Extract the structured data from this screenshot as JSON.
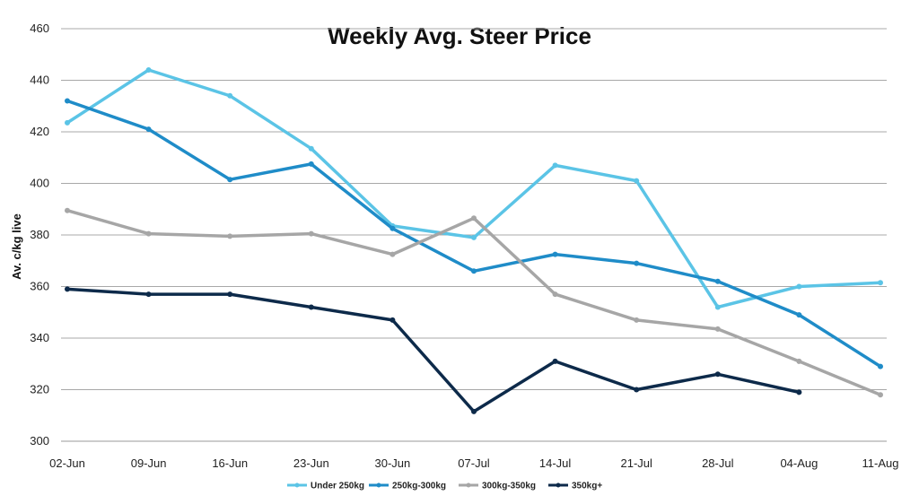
{
  "chart_data": {
    "type": "line",
    "title": "Weekly Avg. Steer Price",
    "xlabel": "",
    "ylabel": "Av. c/kg live",
    "ylim": [
      300,
      460
    ],
    "yticks": [
      300,
      320,
      340,
      360,
      380,
      400,
      420,
      440,
      460
    ],
    "grid": true,
    "legend_position": "bottom",
    "categories": [
      "02-Jun",
      "09-Jun",
      "16-Jun",
      "23-Jun",
      "30-Jun",
      "07-Jul",
      "14-Jul",
      "21-Jul",
      "28-Jul",
      "04-Aug",
      "11-Aug"
    ],
    "series": [
      {
        "name": "Under 250kg",
        "color": "#5bc4e6",
        "values": [
          423.5,
          444,
          434,
          413.5,
          383.5,
          379,
          407,
          401,
          352,
          360,
          361.5
        ]
      },
      {
        "name": "250kg-300kg",
        "color": "#1f8cc8",
        "values": [
          432,
          421,
          401.5,
          407.5,
          382.5,
          366,
          372.5,
          369,
          362,
          349,
          329
        ]
      },
      {
        "name": "300kg-350kg",
        "color": "#a6a6a6",
        "values": [
          389.5,
          380.5,
          379.5,
          380.5,
          372.5,
          386.5,
          357,
          347,
          343.5,
          331,
          318
        ]
      },
      {
        "name": "350kg+",
        "color": "#0d2a4a",
        "values": [
          359,
          357,
          357,
          352,
          347,
          311.5,
          331,
          320,
          326,
          319,
          null
        ]
      }
    ]
  }
}
